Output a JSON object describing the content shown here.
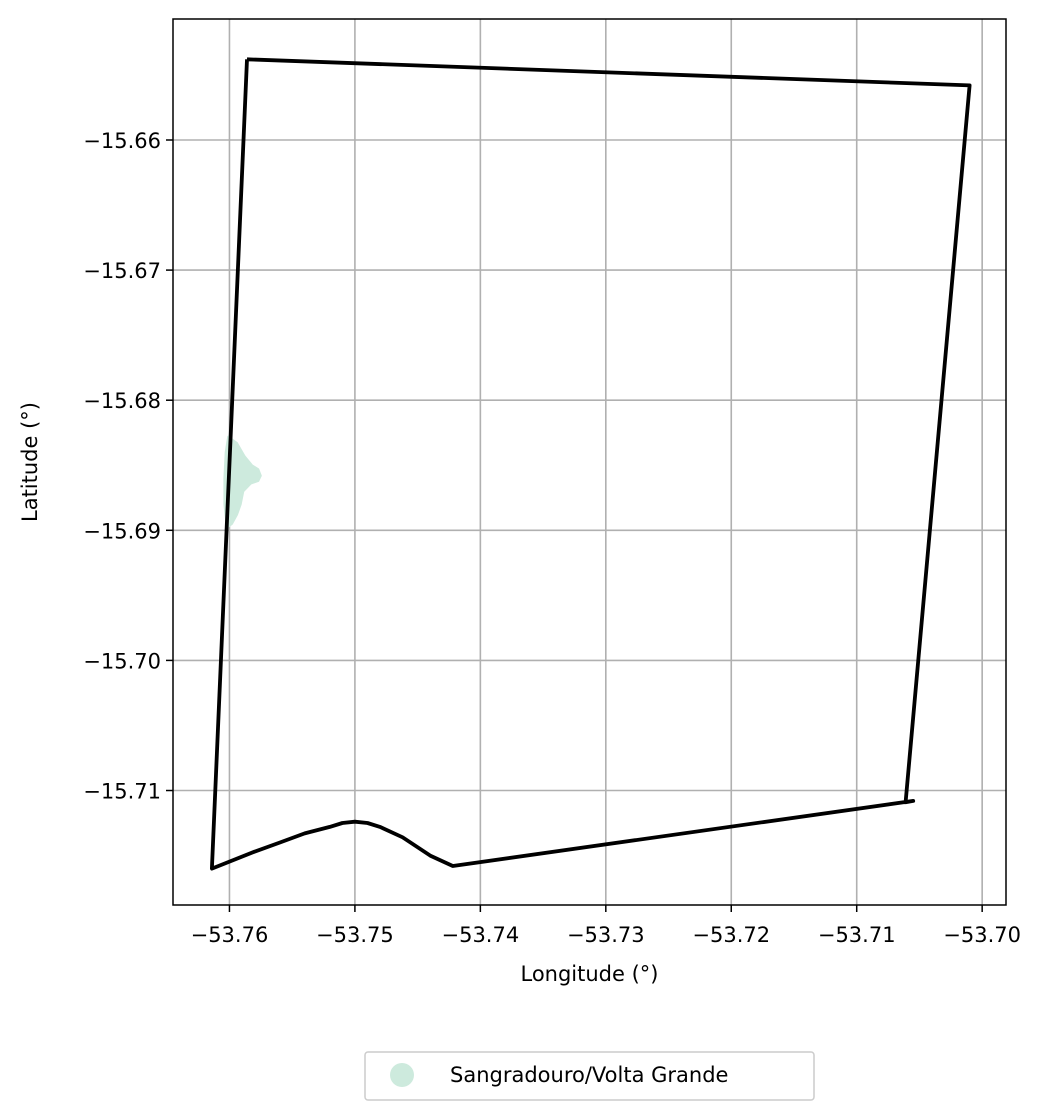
{
  "chart_data": {
    "type": "map",
    "xlabel": "Longitude (°)",
    "ylabel": "Latitude (°)",
    "xlim": [
      -53.7645,
      -53.6981
    ],
    "ylim": [
      -15.7188,
      -15.6507
    ],
    "xticks": [
      -53.76,
      -53.75,
      -53.74,
      -53.73,
      -53.72,
      -53.71,
      -53.7
    ],
    "yticks": [
      -15.66,
      -15.67,
      -15.68,
      -15.69,
      -15.7,
      -15.71
    ],
    "xtick_labels": [
      "−53.76",
      "−53.75",
      "−53.74",
      "−53.73",
      "−53.72",
      "−53.71",
      "−53.70"
    ],
    "ytick_labels": [
      "−15.66",
      "−15.67",
      "−15.68",
      "−15.69",
      "−15.70",
      "−15.71"
    ],
    "grid": true,
    "boundary_color": "#000000",
    "boundary": [
      [
        -53.7586,
        -15.6538
      ],
      [
        -53.701,
        -15.6558
      ],
      [
        -53.7061,
        -15.7109
      ],
      [
        -53.7055,
        -15.7108
      ],
      [
        -53.7422,
        -15.7158
      ],
      [
        -53.744,
        -15.715
      ],
      [
        -53.7462,
        -15.7136
      ],
      [
        -53.748,
        -15.7128
      ],
      [
        -53.749,
        -15.7125
      ],
      [
        -53.75,
        -15.7124
      ],
      [
        -53.751,
        -15.7125
      ],
      [
        -53.752,
        -15.7128
      ],
      [
        -53.754,
        -15.7133
      ],
      [
        -53.756,
        -15.714
      ],
      [
        -53.758,
        -15.7147
      ],
      [
        -53.7614,
        -15.716
      ],
      [
        -53.7586,
        -15.6538
      ]
    ],
    "regions": [
      {
        "name": "Sangradouro/Volta Grande",
        "color": "#cdeadd",
        "polygon": [
          [
            -53.7601,
            -15.6828
          ],
          [
            -53.7594,
            -15.6833
          ],
          [
            -53.7588,
            -15.6843
          ],
          [
            -53.7582,
            -15.685
          ],
          [
            -53.7577,
            -15.6853
          ],
          [
            -53.7575,
            -15.6858
          ],
          [
            -53.7577,
            -15.6862
          ],
          [
            -53.7583,
            -15.6864
          ],
          [
            -53.7589,
            -15.687
          ],
          [
            -53.7591,
            -15.688
          ],
          [
            -53.7594,
            -15.6888
          ],
          [
            -53.7598,
            -15.6895
          ],
          [
            -53.7602,
            -15.6898
          ],
          [
            -53.7604,
            -15.688
          ],
          [
            -53.7604,
            -15.686
          ],
          [
            -53.7603,
            -15.684
          ]
        ]
      }
    ],
    "legend": {
      "placement": "bottom-center",
      "entries": [
        "Sangradouro/Volta Grande"
      ]
    }
  }
}
